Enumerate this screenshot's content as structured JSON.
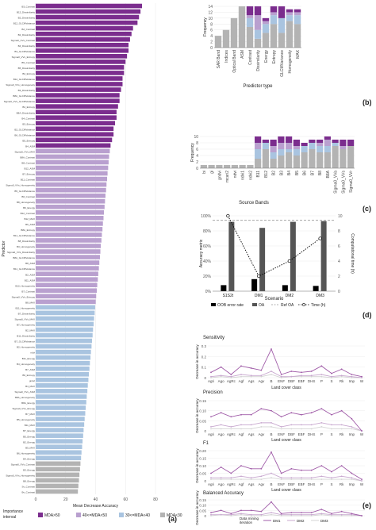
{
  "panel_labels": {
    "a": "(a)",
    "b": "(b)",
    "c": "(c)",
    "d": "(d)",
    "e": "(e)"
  },
  "colors": {
    "gt50": "#7b2d8e",
    "b40_50": "#b9a0cf",
    "b30_40": "#a9c4e0",
    "lt30": "#b3b3b3",
    "line_dm1": "#a05ca8",
    "line_dm2": "#c8a8cf",
    "line_dm3": "#d4d4d4",
    "oob": "#000000",
    "oa": "#555555",
    "refoa": "#999999",
    "time": "#000000"
  },
  "chart_data": [
    {
      "id": "a",
      "type": "bar",
      "orientation": "horizontal",
      "xlabel": "Mean Decrease Accuracy",
      "ylabel": "Predictor",
      "xlim": [
        0,
        80
      ],
      "xticks": [
        "0",
        "20",
        "40",
        "60",
        "80"
      ],
      "legend_title": "Importance interval",
      "legend": [
        "MDA>50",
        "40<=MDA<50",
        "30<=MDA<40",
        "MDA<30"
      ],
      "legend_placement": "bottom",
      "categories": [
        "B3_Contrast",
        "B12_Dissimilarity",
        "B2_Dissimilarity",
        "B12_GLCMVariance",
        "B2_Contrast",
        "B2_Dissimilarity",
        "Sigma0_VVs_Contrast",
        "B4_Dissimilarity",
        "B3_GLCMVariance",
        "Sigma0_VVs_Entropy",
        "B5_Contrast",
        "B5_Dissimilarity",
        "B2_Entropy",
        "B12_GLCMVariance",
        "Sigma0_VVs_Homogeneity",
        "B3_Dissimilarity",
        "B8A_GLCMVariance",
        "Sigma0_VVs_GLCMVariance",
        "B4_Entropy",
        "B8A_Dissimilarity",
        "B4_Contrast",
        "B3_Entropy",
        "B2_GLCMVariance",
        "B6_GLCMVariance",
        "B5_Entropy",
        "B4_ASM",
        "Sigma0_VVs_MAX",
        "B8A_Contrast",
        "B8_Contrast",
        "B12_ASM",
        "B7_Entropy",
        "B11_Contrast",
        "Sigma0_VVs_Homogeneity",
        "B5_GLCMVariance",
        "B6_Contrast",
        "B8_Homogeneity",
        "B6_Energy",
        "B12_Contrast",
        "B12_MAX",
        "B6_ASM",
        "B8A_Entropy",
        "B11_GLCMVariance",
        "B8_Dissimilarity",
        "B3_Homogeneity",
        "Sigma0_VVs_Dissimilarity",
        "B8A_GLCMVariance",
        "B8_ASM",
        "B11_GLCMVariance",
        "B2_ASM",
        "B11_ASM",
        "B12_Homogeneity",
        "B7_Contrast",
        "Sigma0_VVs_Entropy",
        "B8_MAX",
        "B11_Homogeneity",
        "B7_Dissimilarity",
        "Sigma0_VVs_MAX",
        "B7_Homogeneity",
        "B2_MAX",
        "B11_Dissimilarity",
        "B7_GLCMVariance",
        "B2_Homogeneity",
        "ndvi",
        "B11_Energy",
        "B4_Homogeneity",
        "B7_ASM",
        "B6_Entropy",
        "gndvi",
        "B4_MAX",
        "Sigma0_VVs_ASM",
        "B8A_Homogeneity",
        "B8A_Energy",
        "Sigma0_VVs_Energy",
        "B7_MAX",
        "B5_Homogeneity",
        "B11_MAX",
        "B7_Energy",
        "B5_Energy",
        "B2_Energy",
        "B5_MAX",
        "B6_Homogeneity",
        "B4_Energy",
        "Sigma0_VVs_Contrast",
        "B3_Energy",
        "Sigma0_VVs_Homogeneity",
        "B8_Energy",
        "Sv_Contrast",
        "Bv_Contrast"
      ],
      "values": [
        71,
        70,
        69,
        68,
        65,
        64,
        63,
        62,
        62,
        61,
        60,
        59,
        59,
        58,
        58,
        57,
        56,
        56,
        55,
        54,
        54,
        53,
        52,
        52,
        51,
        50,
        49.5,
        49,
        48.7,
        48.4,
        48,
        47.7,
        47.3,
        47,
        46.6,
        46.3,
        46,
        45.6,
        45.3,
        44.9,
        44.6,
        44.2,
        43.9,
        43.5,
        43.2,
        42.9,
        42.5,
        42.2,
        41.8,
        41.5,
        41.1,
        40.8,
        40.4,
        40.1,
        39.7,
        39.4,
        39,
        38.7,
        38.3,
        38,
        37.6,
        37.3,
        36.9,
        36.6,
        36.2,
        35.9,
        35.5,
        35.2,
        34.8,
        34.5,
        34.1,
        33.8,
        33.4,
        33.1,
        32.7,
        32.4,
        32,
        31.7,
        31.3,
        31,
        30.6,
        30.3,
        29.9,
        29.6,
        29.2,
        28.9,
        28.5,
        28.2
      ]
    },
    {
      "id": "b",
      "type": "bar",
      "stacked": true,
      "xlabel": "Predictor type",
      "ylabel": "Frequency",
      "ylim": [
        0,
        14
      ],
      "yticks": [
        "0",
        "2",
        "4",
        "6",
        "8",
        "10",
        "12",
        "14"
      ],
      "categories": [
        "SAR Band",
        "Indices",
        "Optical Band",
        "ASM",
        "Contrast",
        "Dissimilarity",
        "Energy",
        "Entropy",
        "GLCMVariance",
        "Homogeneity",
        "MAX"
      ],
      "series": [
        {
          "values": [
            4,
            6,
            10,
            14,
            7,
            3,
            5,
            8,
            5,
            9,
            8
          ]
        },
        {
          "values": [
            0,
            0,
            0,
            0,
            3,
            3,
            3,
            3,
            5,
            2,
            3
          ]
        },
        {
          "values": [
            0,
            0,
            0,
            0,
            1,
            5,
            1,
            1,
            0,
            1,
            1
          ]
        },
        {
          "values": [
            0,
            0,
            0,
            0,
            3,
            3,
            1,
            2,
            4,
            1,
            1
          ]
        }
      ]
    },
    {
      "id": "c",
      "type": "bar",
      "stacked": true,
      "xlabel": "Source Bands",
      "ylabel": "Frequency",
      "ylim": [
        0,
        10
      ],
      "yticks": [
        "0",
        "2",
        "4",
        "6",
        "8",
        "10"
      ],
      "categories": [
        "bi",
        "gi",
        "gndvi",
        "mcari2",
        "ndvi",
        "ndvi1",
        "ndvi2",
        "B11",
        "B12",
        "B2",
        "B3",
        "B4",
        "B5",
        "B6",
        "B7",
        "B8",
        "B8A",
        "Sigma0_VVa",
        "Sigma0_VVs",
        "Sigma0_VVr"
      ],
      "series": [
        {
          "values": [
            1,
            1,
            1,
            1,
            1,
            1,
            1,
            3,
            6,
            3,
            4,
            5,
            4,
            5,
            6,
            5,
            5,
            7,
            6,
            7
          ]
        },
        {
          "values": [
            0,
            0,
            0,
            0,
            0,
            0,
            0,
            3,
            2,
            2,
            2,
            1,
            2,
            2,
            2,
            2,
            2,
            1,
            0,
            0
          ]
        },
        {
          "values": [
            0,
            0,
            0,
            0,
            0,
            0,
            0,
            2,
            0,
            2,
            2,
            2,
            1,
            0,
            0,
            1,
            2,
            0,
            1,
            0
          ]
        },
        {
          "values": [
            0,
            0,
            0,
            0,
            0,
            0,
            0,
            2,
            1,
            2,
            2,
            2,
            2,
            1,
            1,
            1,
            1,
            1,
            2,
            2
          ]
        }
      ]
    },
    {
      "id": "d",
      "type": "bar",
      "xlabel": "Scenario",
      "ylabel": "Accuracy metric",
      "ylabel_right": "Computational time (h)",
      "ylim": [
        0,
        100
      ],
      "yticks": [
        "0%",
        "20%",
        "40%",
        "60%",
        "80%",
        "100%"
      ],
      "ylim_right": [
        0,
        10
      ],
      "yticks_right": [
        "0",
        "2",
        "4",
        "6",
        "8",
        "10"
      ],
      "categories": [
        "S1S2t",
        "DM1",
        "DM2",
        "DM3"
      ],
      "legend": [
        "OOB error rate",
        "OA",
        "Ref OA",
        "Time (h)"
      ],
      "legend_placement": "bottom",
      "series": [
        {
          "name": "OOB error rate",
          "values": [
            8,
            16,
            8,
            7
          ]
        },
        {
          "name": "OA",
          "values": [
            92,
            84,
            92,
            93
          ]
        },
        {
          "name": "Ref OA",
          "values": [
            94,
            94,
            94,
            94
          ]
        },
        {
          "name": "Time (h)",
          "values": [
            10,
            2,
            4,
            7
          ]
        }
      ]
    },
    {
      "id": "e",
      "type": "line",
      "categories": [
        "Agri",
        "Ago",
        "AgRc",
        "Agf",
        "Ags",
        "Agv",
        "B",
        "ENF",
        "DBF",
        "EBF",
        "DHS",
        "P",
        "S",
        "Rk",
        "Imp",
        "W"
      ],
      "xlabel": "Land cover class",
      "ylabel": "Decrease in accuracy",
      "legend_title": "Data mining iteration",
      "legend": [
        "DM1",
        "DM2",
        "DM3"
      ],
      "legend_placement": "bottom",
      "subplots": [
        {
          "title": "Sensitivity",
          "ylim": [
            0,
            0.3
          ],
          "yticks": [
            "0",
            "0.1",
            "0.2",
            "0.3"
          ],
          "series": [
            {
              "name": "DM1",
              "values": [
                0.05,
                0.1,
                0.03,
                0.11,
                0.09,
                0.07,
                0.27,
                0.03,
                0.06,
                0.05,
                0.06,
                0.11,
                0.04,
                0.08,
                0.03,
                0.01
              ]
            },
            {
              "name": "DM2",
              "values": [
                0.01,
                0.02,
                0.01,
                0.03,
                0.02,
                0.02,
                0.06,
                0.01,
                0.01,
                0.02,
                0.02,
                0.03,
                0.01,
                0.02,
                0.01,
                0.0
              ]
            },
            {
              "name": "DM3",
              "values": [
                0.0,
                0.01,
                0.0,
                0.01,
                0.01,
                0.01,
                0.03,
                0.0,
                0.01,
                0.01,
                0.01,
                0.01,
                0.0,
                0.01,
                0.0,
                0.0
              ]
            }
          ]
        },
        {
          "title": "Precision",
          "ylim": [
            0,
            0.15
          ],
          "yticks": [
            "0",
            "0.05",
            "0.10",
            "0.15"
          ],
          "series": [
            {
              "name": "DM1",
              "values": [
                0.07,
                0.09,
                0.07,
                0.08,
                0.08,
                0.11,
                0.1,
                0.07,
                0.09,
                0.08,
                0.09,
                0.11,
                0.08,
                0.1,
                0.06,
                0.0
              ]
            },
            {
              "name": "DM2",
              "values": [
                0.02,
                0.03,
                0.02,
                0.03,
                0.03,
                0.04,
                0.04,
                0.02,
                0.03,
                0.03,
                0.03,
                0.04,
                0.03,
                0.03,
                0.02,
                0.0
              ]
            },
            {
              "name": "DM3",
              "values": [
                0.01,
                0.01,
                0.01,
                0.01,
                0.01,
                0.02,
                0.02,
                0.01,
                0.01,
                0.01,
                0.01,
                0.02,
                0.01,
                0.01,
                0.01,
                0.0
              ]
            }
          ]
        },
        {
          "title": "F1",
          "ylim": [
            0,
            0.2
          ],
          "yticks": [
            "0",
            "0.05",
            "0.10",
            "0.15",
            "0.20"
          ],
          "series": [
            {
              "name": "DM1",
              "values": [
                0.05,
                0.09,
                0.05,
                0.1,
                0.08,
                0.08,
                0.19,
                0.05,
                0.08,
                0.07,
                0.07,
                0.1,
                0.06,
                0.1,
                0.05,
                0.01
              ]
            },
            {
              "name": "DM2",
              "values": [
                0.02,
                0.02,
                0.02,
                0.03,
                0.02,
                0.03,
                0.05,
                0.02,
                0.02,
                0.02,
                0.02,
                0.03,
                0.02,
                0.03,
                0.02,
                0.0
              ]
            },
            {
              "name": "DM3",
              "values": [
                0.01,
                0.01,
                0.01,
                0.01,
                0.01,
                0.01,
                0.02,
                0.01,
                0.01,
                0.01,
                0.01,
                0.01,
                0.01,
                0.01,
                0.01,
                0.0
              ]
            }
          ]
        },
        {
          "title": "Balanced Accuracy",
          "ylim": [
            0,
            0.15
          ],
          "yticks": [
            "0",
            "0.05",
            "0.10",
            "0.15"
          ],
          "series": [
            {
              "name": "DM1",
              "values": [
                0.03,
                0.05,
                0.02,
                0.05,
                0.05,
                0.04,
                0.13,
                0.02,
                0.03,
                0.03,
                0.03,
                0.06,
                0.02,
                0.04,
                0.02,
                0.0
              ]
            },
            {
              "name": "DM2",
              "values": [
                0.01,
                0.01,
                0.01,
                0.02,
                0.01,
                0.01,
                0.03,
                0.01,
                0.01,
                0.01,
                0.01,
                0.02,
                0.01,
                0.01,
                0.01,
                0.0
              ]
            },
            {
              "name": "DM3",
              "values": [
                0.0,
                0.01,
                0.0,
                0.01,
                0.0,
                0.0,
                0.01,
                0.0,
                0.0,
                0.0,
                0.0,
                0.01,
                0.0,
                0.0,
                0.0,
                0.0
              ]
            }
          ]
        }
      ]
    }
  ]
}
